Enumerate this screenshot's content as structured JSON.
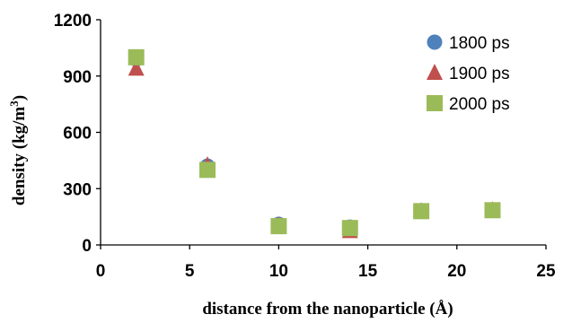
{
  "chart_data": {
    "type": "scatter",
    "xlabel": "distance from the nanoparticle (Å)",
    "ylabel": "density (kg/m³)",
    "ylabel_parts": {
      "main": "density (kg/m",
      "sup": "3",
      "end": ")"
    },
    "xlim": [
      0,
      25
    ],
    "ylim": [
      0,
      1200
    ],
    "x_ticks": [
      0,
      5,
      10,
      15,
      20,
      25
    ],
    "y_ticks": [
      0,
      300,
      600,
      900,
      1200
    ],
    "grid": false,
    "legend_position": "top-right",
    "series": [
      {
        "name": "1800 ps",
        "marker": "circle",
        "color": "#4F81BD",
        "x": [
          2,
          6,
          10,
          14,
          18,
          22
        ],
        "y": [
          990,
          420,
          110,
          95,
          180,
          185
        ]
      },
      {
        "name": "1900 ps",
        "marker": "triangle",
        "color": "#C0504D",
        "x": [
          2,
          6,
          10,
          14,
          18,
          22
        ],
        "y": [
          940,
          425,
          105,
          75,
          180,
          185
        ]
      },
      {
        "name": "2000 ps",
        "marker": "square",
        "color": "#9BBB59",
        "x": [
          2,
          6,
          10,
          14,
          18,
          22
        ],
        "y": [
          1000,
          400,
          100,
          90,
          180,
          185
        ]
      }
    ]
  }
}
